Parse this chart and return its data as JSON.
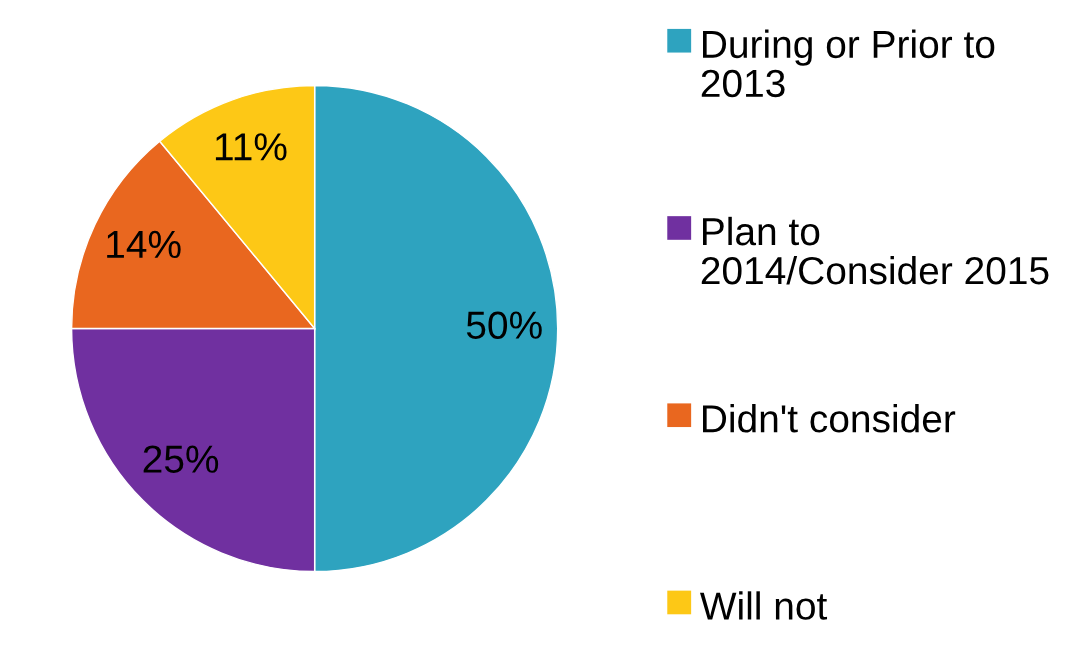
{
  "chart_data": {
    "type": "pie",
    "categories": [
      "During or Prior to 2013",
      "Plan to 2014/Consider 2015",
      "Didn't consider",
      "Will not"
    ],
    "values": [
      50,
      25,
      14,
      11
    ],
    "colors": [
      "#2ea3bf",
      "#7030a0",
      "#e9671f",
      "#fdc816"
    ],
    "value_labels": [
      "50%",
      "25%",
      "14%",
      "11%"
    ],
    "legend": "right"
  }
}
